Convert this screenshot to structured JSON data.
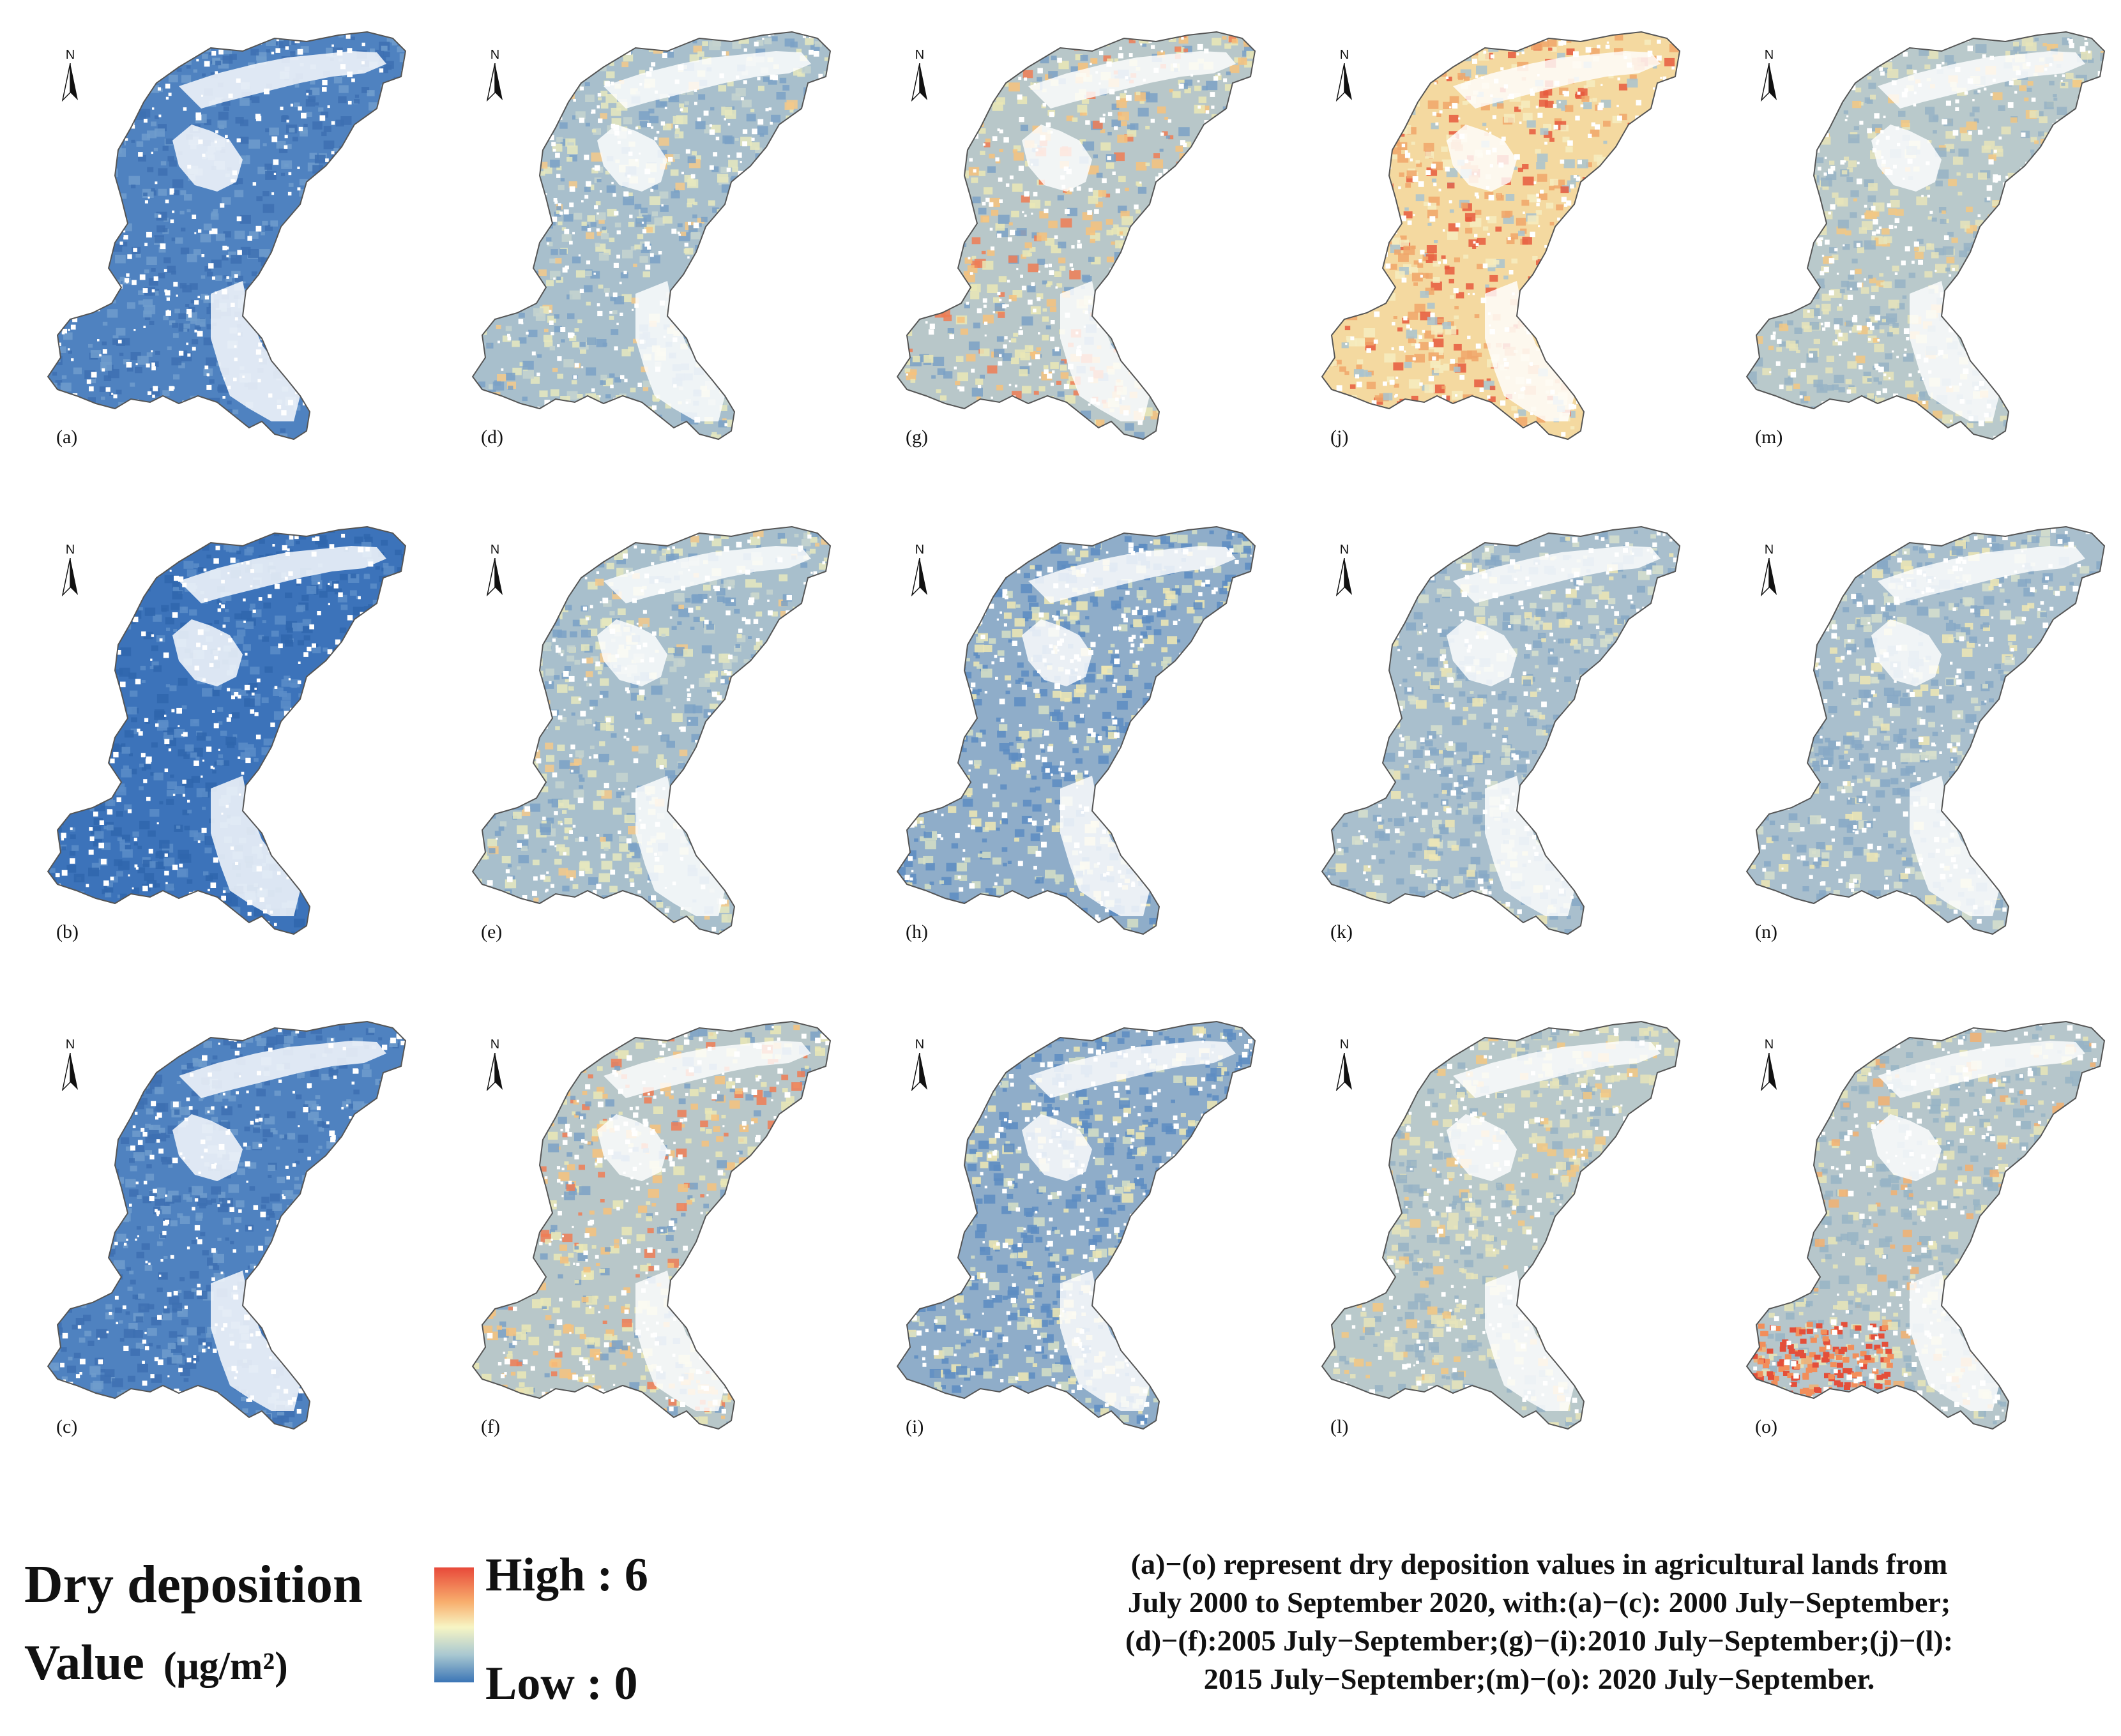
{
  "panels": [
    {
      "id": "a",
      "label": "(a)",
      "scheme": "blue-deep"
    },
    {
      "id": "b",
      "label": "(b)",
      "scheme": "blue-deeper"
    },
    {
      "id": "c",
      "label": "(c)",
      "scheme": "blue-deep"
    },
    {
      "id": "d",
      "label": "(d)",
      "scheme": "mixed-low"
    },
    {
      "id": "e",
      "label": "(e)",
      "scheme": "mixed-low"
    },
    {
      "id": "f",
      "label": "(f)",
      "scheme": "mixed-mid"
    },
    {
      "id": "g",
      "label": "(g)",
      "scheme": "mixed-mid"
    },
    {
      "id": "h",
      "label": "(h)",
      "scheme": "blue-mixed"
    },
    {
      "id": "i",
      "label": "(i)",
      "scheme": "blue-mixed"
    },
    {
      "id": "j",
      "label": "(j)",
      "scheme": "warm-high"
    },
    {
      "id": "k",
      "label": "(k)",
      "scheme": "grey-blue"
    },
    {
      "id": "l",
      "label": "(l)",
      "scheme": "grey-yellow"
    },
    {
      "id": "m",
      "label": "(m)",
      "scheme": "grey-yellow"
    },
    {
      "id": "n",
      "label": "(n)",
      "scheme": "grey-blue"
    },
    {
      "id": "o",
      "label": "(o)",
      "scheme": "grey-red-sw"
    }
  ],
  "north_label": "N",
  "legend": {
    "title": "Dry deposition",
    "value_label": "Value",
    "unit": "(μg/m²)",
    "high": "High : 6",
    "low": "Low : 0",
    "colors": {
      "high": "#e8493a",
      "mid": "#f7f5c4",
      "low": "#3b75b6"
    }
  },
  "caption": [
    "(a)−(o) represent dry deposition values in agricultural lands from",
    "July 2000 to September 2020, with:(a)−(c): 2000 July−September;",
    "(d)−(f):2005 July−September;(g)−(i):2010 July−September;(j)−(l):",
    "2015 July−September;(m)−(o): 2020 July−September."
  ]
}
